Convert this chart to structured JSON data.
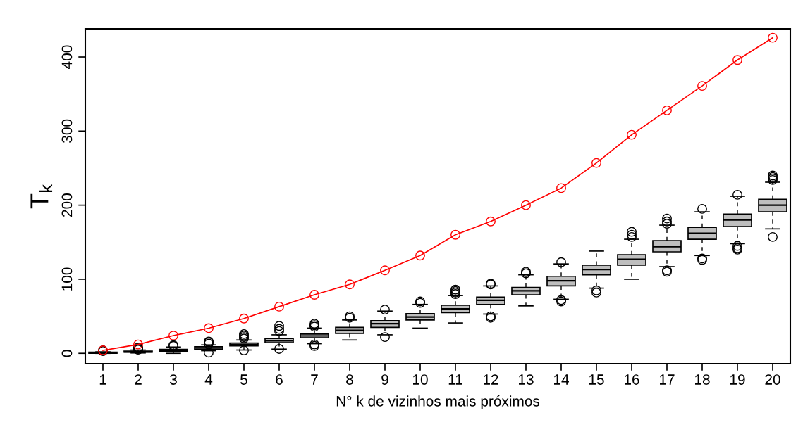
{
  "chart_data": {
    "type": "box",
    "xlabel": "N° k de vizinhos mais próximos",
    "ylabel": "T$_{k}$",
    "categories": [
      "1",
      "2",
      "3",
      "4",
      "5",
      "6",
      "7",
      "8",
      "9",
      "10",
      "11",
      "12",
      "13",
      "14",
      "15",
      "16",
      "17",
      "18",
      "19",
      "20"
    ],
    "ylim": [
      -14,
      438
    ],
    "yticks": [
      0,
      100,
      200,
      300,
      400
    ],
    "grid": false,
    "legend": false,
    "series": [
      {
        "color": "#bebebe",
        "boxes": [
          {
            "low": 0,
            "q1": 0,
            "median": 1,
            "q3": 1.5,
            "high": 2,
            "outliers": [
              3,
              4
            ]
          },
          {
            "low": 0.5,
            "q1": 1.5,
            "median": 2,
            "q3": 3,
            "high": 4.5,
            "outliers": [
              5,
              6,
              7,
              8
            ]
          },
          {
            "low": 0,
            "q1": 2.6,
            "median": 4,
            "q3": 5.4,
            "high": 8.5,
            "outliers": [
              10,
              11
            ]
          },
          {
            "low": 3.5,
            "q1": 5.7,
            "median": 7.5,
            "q3": 9,
            "high": 11.4,
            "outliers": [
              1,
              13,
              15,
              16
            ]
          },
          {
            "low": 4.5,
            "q1": 10,
            "median": 12,
            "q3": 14,
            "high": 18,
            "outliers": [
              4,
              20,
              22,
              24,
              26
            ]
          },
          {
            "low": 5.7,
            "q1": 14.5,
            "median": 17,
            "q3": 20,
            "high": 25,
            "outliers": [
              6,
              30,
              33,
              37
            ]
          },
          {
            "low": 13,
            "q1": 21,
            "median": 23.5,
            "q3": 26,
            "high": 34,
            "outliers": [
              10,
              12,
              36,
              38,
              40
            ]
          },
          {
            "low": 18,
            "q1": 27,
            "median": 31,
            "q3": 35,
            "high": 45,
            "outliers": [
              48,
              50
            ]
          },
          {
            "low": 25,
            "q1": 35,
            "median": 40,
            "q3": 44,
            "high": 57,
            "outliers": [
              22,
              59
            ]
          },
          {
            "low": 34,
            "q1": 45,
            "median": 49,
            "q3": 53.5,
            "high": 66,
            "outliers": [
              68,
              70
            ]
          },
          {
            "low": 41,
            "q1": 55,
            "median": 60,
            "q3": 65,
            "high": 78,
            "outliers": [
              80,
              82,
              84,
              86
            ]
          },
          {
            "low": 53,
            "q1": 66,
            "median": 71.5,
            "q3": 76,
            "high": 91,
            "outliers": [
              48,
              50,
              93,
              94
            ]
          },
          {
            "low": 64,
            "q1": 79,
            "median": 84.5,
            "q3": 89,
            "high": 106,
            "outliers": [
              108,
              110
            ]
          },
          {
            "low": 73,
            "q1": 91,
            "median": 98,
            "q3": 104,
            "high": 120.7,
            "outliers": [
              70,
              72,
              123
            ]
          },
          {
            "low": 88,
            "q1": 106,
            "median": 113,
            "q3": 119,
            "high": 138,
            "outliers": [
              82,
              85
            ]
          },
          {
            "low": 100,
            "q1": 119,
            "median": 127,
            "q3": 133,
            "high": 154,
            "outliers": [
              157,
              160,
              164
            ]
          },
          {
            "low": 117,
            "q1": 137,
            "median": 144,
            "q3": 152,
            "high": 173,
            "outliers": [
              110,
              112,
              175,
              178,
              182
            ]
          },
          {
            "low": 132,
            "q1": 154,
            "median": 162,
            "q3": 170,
            "high": 191,
            "outliers": [
              126,
              128,
              195
            ]
          },
          {
            "low": 148,
            "q1": 171,
            "median": 180,
            "q3": 188,
            "high": 212,
            "outliers": [
              140,
              142,
              145,
              214
            ]
          },
          {
            "low": 168,
            "q1": 191,
            "median": 200,
            "q3": 208,
            "high": 231,
            "outliers": [
              157,
              234,
              236,
              238,
              240
            ]
          }
        ]
      },
      {
        "type": "line",
        "color": "#ff0000",
        "marker": "circle",
        "line_style": "solid",
        "values": [
          4,
          12,
          24,
          34,
          47,
          63,
          79,
          93,
          112,
          132,
          160,
          178,
          200,
          223,
          257,
          295,
          328,
          361,
          396,
          426
        ]
      }
    ]
  }
}
